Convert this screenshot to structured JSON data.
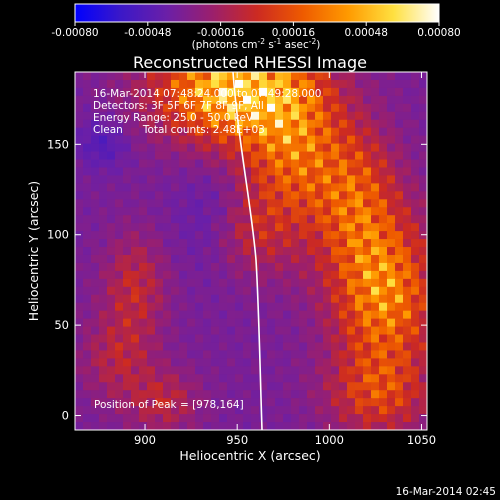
{
  "chart_data": {
    "type": "heatmap",
    "title": "Reconstructed RHESSI Image",
    "xlabel": "Heliocentric X (arcsec)",
    "ylabel": "Heliocentric Y (arcsec)",
    "xlim": [
      862,
      1053
    ],
    "ylim": [
      -8,
      190
    ],
    "x_ticks": [
      900,
      950,
      1000,
      1050
    ],
    "y_ticks": [
      0,
      50,
      100,
      150
    ],
    "colorbar": {
      "range": [
        -0.0008,
        0.0008
      ],
      "tick_labels": [
        "-0.00080",
        "-0.00048",
        "-0.00016",
        "0.00016",
        "0.00048",
        "0.00080"
      ],
      "unit_prefix": "(photons cm",
      "unit_exp1": "-2",
      "unit_mid1": " s",
      "unit_exp2": "-1",
      "unit_mid2": " asec",
      "unit_exp3": "-2",
      "unit_suffix": ")",
      "colormap": [
        "#0000ff",
        "#3b18c8",
        "#6a1fa8",
        "#9a1f6e",
        "#cc2a22",
        "#ee5a00",
        "#ff9a00",
        "#ffe040",
        "#ffffff"
      ]
    },
    "annotations": [
      "16-Mar-2014 07:48:24.000 to 07:49:28.000",
      "Detectors: 3F 5F 6F 7F 8F 9F, All",
      "Energy Range: 25.0 - 50.0 keV",
      "Clean      Total counts: 2.48E+03"
    ],
    "peak_label": "Position of Peak = [978,164]",
    "peak": [
      978,
      164
    ]
  },
  "footer_timestamp": "16-Mar-2014 02:45"
}
